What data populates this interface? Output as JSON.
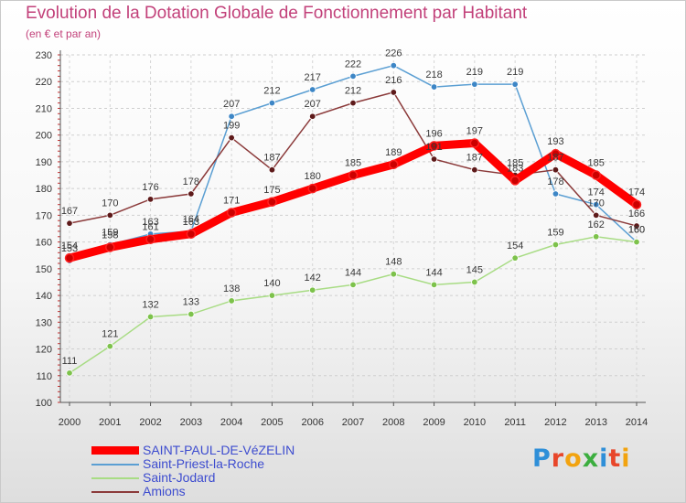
{
  "header": {
    "title": "Evolution de la Dotation Globale de Fonctionnement par Habitant",
    "subtitle": "(en € et par an)"
  },
  "logo": {
    "text": "Proxiti",
    "letters": [
      "P",
      "r",
      "o",
      "x",
      "i",
      "t",
      "i"
    ],
    "colors": [
      "#2f8fd8",
      "#e8462a",
      "#f2a30f",
      "#3cae3f",
      "#2f8fd8",
      "#e8462a",
      "#f2a30f"
    ]
  },
  "chart_data": {
    "type": "line",
    "title": "Evolution de la Dotation Globale de Fonctionnement par Habitant",
    "ylabel": "(en € et par an)",
    "xlabel": "",
    "x": [
      "2000",
      "2001",
      "2002",
      "2003",
      "2004",
      "2005",
      "2006",
      "2007",
      "2008",
      "2009",
      "2010",
      "2011",
      "2012",
      "2013",
      "2014"
    ],
    "ylim": [
      100,
      230
    ],
    "yticks": [
      100,
      110,
      120,
      130,
      140,
      150,
      160,
      170,
      180,
      190,
      200,
      210,
      220,
      230
    ],
    "grid": true,
    "legend_position": "bottom-left",
    "series": [
      {
        "name": "Saint-Priest-la-Roche",
        "color": "#5b9fd3",
        "marker": "#3d86c6",
        "emphasis": false,
        "values": [
          153,
          159,
          163,
          164,
          207,
          212,
          217,
          222,
          226,
          218,
          219,
          219,
          178,
          174,
          160
        ]
      },
      {
        "name": "Saint-Jodard",
        "color": "#a8dc84",
        "marker": "#7dc24b",
        "emphasis": false,
        "values": [
          111,
          121,
          132,
          133,
          138,
          140,
          142,
          144,
          148,
          144,
          145,
          154,
          159,
          162,
          160
        ]
      },
      {
        "name": "Amions",
        "color": "#8b3a3a",
        "marker": "#5e1a1a",
        "emphasis": false,
        "values": [
          167,
          170,
          176,
          178,
          199,
          187,
          207,
          212,
          216,
          191,
          187,
          185,
          187,
          170,
          166
        ]
      },
      {
        "name": "SAINT-PAUL-DE-VéZELIN",
        "color": "#ff0000",
        "marker": "#cc0000",
        "emphasis": true,
        "values": [
          154,
          158,
          161,
          163,
          171,
          175,
          180,
          185,
          189,
          196,
          197,
          183,
          193,
          185,
          174
        ]
      }
    ],
    "data_labels": [
      {
        "series": 3,
        "x": "2000",
        "text": "154"
      },
      {
        "series": 3,
        "x": "2001",
        "text": "158"
      },
      {
        "series": 3,
        "x": "2002",
        "text": "161"
      },
      {
        "series": 3,
        "x": "2003",
        "text": "163"
      },
      {
        "series": 3,
        "x": "2004",
        "text": "171"
      },
      {
        "series": 3,
        "x": "2005",
        "text": "175"
      },
      {
        "series": 3,
        "x": "2006",
        "text": "180"
      },
      {
        "series": 3,
        "x": "2007",
        "text": "185"
      },
      {
        "series": 3,
        "x": "2008",
        "text": "189"
      },
      {
        "series": 3,
        "x": "2009",
        "text": "196"
      },
      {
        "series": 3,
        "x": "2010",
        "text": "197"
      },
      {
        "series": 3,
        "x": "2011",
        "text": "183"
      },
      {
        "series": 3,
        "x": "2012",
        "text": "193"
      },
      {
        "series": 3,
        "x": "2013",
        "text": "185"
      },
      {
        "series": 3,
        "x": "2014",
        "text": "174"
      },
      {
        "series": 0,
        "x": "2000",
        "text": "153"
      },
      {
        "series": 0,
        "x": "2001",
        "text": "159"
      },
      {
        "series": 0,
        "x": "2002",
        "text": "163"
      },
      {
        "series": 0,
        "x": "2003",
        "text": "164"
      },
      {
        "series": 0,
        "x": "2004",
        "text": "207"
      },
      {
        "series": 0,
        "x": "2005",
        "text": "212"
      },
      {
        "series": 0,
        "x": "2006",
        "text": "217"
      },
      {
        "series": 0,
        "x": "2007",
        "text": "222"
      },
      {
        "series": 0,
        "x": "2008",
        "text": "226"
      },
      {
        "series": 0,
        "x": "2009",
        "text": "218"
      },
      {
        "series": 0,
        "x": "2010",
        "text": "219"
      },
      {
        "series": 0,
        "x": "2011",
        "text": "219"
      },
      {
        "series": 0,
        "x": "2012",
        "text": "178"
      },
      {
        "series": 0,
        "x": "2013",
        "text": "174"
      },
      {
        "series": 0,
        "x": "2014",
        "text": "160"
      },
      {
        "series": 1,
        "x": "2000",
        "text": "111"
      },
      {
        "series": 1,
        "x": "2001",
        "text": "121"
      },
      {
        "series": 1,
        "x": "2002",
        "text": "132"
      },
      {
        "series": 1,
        "x": "2003",
        "text": "133"
      },
      {
        "series": 1,
        "x": "2004",
        "text": "138"
      },
      {
        "series": 1,
        "x": "2005",
        "text": "140"
      },
      {
        "series": 1,
        "x": "2006",
        "text": "142"
      },
      {
        "series": 1,
        "x": "2007",
        "text": "144"
      },
      {
        "series": 1,
        "x": "2008",
        "text": "148"
      },
      {
        "series": 1,
        "x": "2009",
        "text": "144"
      },
      {
        "series": 1,
        "x": "2010",
        "text": "145"
      },
      {
        "series": 1,
        "x": "2011",
        "text": "154"
      },
      {
        "series": 1,
        "x": "2012",
        "text": "159"
      },
      {
        "series": 1,
        "x": "2013",
        "text": "162"
      },
      {
        "series": 1,
        "x": "2014",
        "text": "160"
      },
      {
        "series": 2,
        "x": "2000",
        "text": "167"
      },
      {
        "series": 2,
        "x": "2001",
        "text": "170"
      },
      {
        "series": 2,
        "x": "2002",
        "text": "176"
      },
      {
        "series": 2,
        "x": "2003",
        "text": "178"
      },
      {
        "series": 2,
        "x": "2004",
        "text": "199"
      },
      {
        "series": 2,
        "x": "2005",
        "text": "187"
      },
      {
        "series": 2,
        "x": "2006",
        "text": "207"
      },
      {
        "series": 2,
        "x": "2007",
        "text": "212"
      },
      {
        "series": 2,
        "x": "2008",
        "text": "216"
      },
      {
        "series": 2,
        "x": "2009",
        "text": "191"
      },
      {
        "series": 2,
        "x": "2010",
        "text": "187"
      },
      {
        "series": 2,
        "x": "2011",
        "text": "185"
      },
      {
        "series": 2,
        "x": "2012",
        "text": "187"
      },
      {
        "series": 2,
        "x": "2013",
        "text": "170"
      },
      {
        "series": 2,
        "x": "2014",
        "text": "166"
      }
    ]
  },
  "legend": {
    "items": [
      {
        "label": "SAINT-PAUL-DE-VéZELIN",
        "color": "#ff0000",
        "emphasis": true
      },
      {
        "label": "Saint-Priest-la-Roche",
        "color": "#5b9fd3",
        "emphasis": false
      },
      {
        "label": "Saint-Jodard",
        "color": "#a8dc84",
        "emphasis": false
      },
      {
        "label": "Amions",
        "color": "#8b3a3a",
        "emphasis": false
      }
    ]
  }
}
